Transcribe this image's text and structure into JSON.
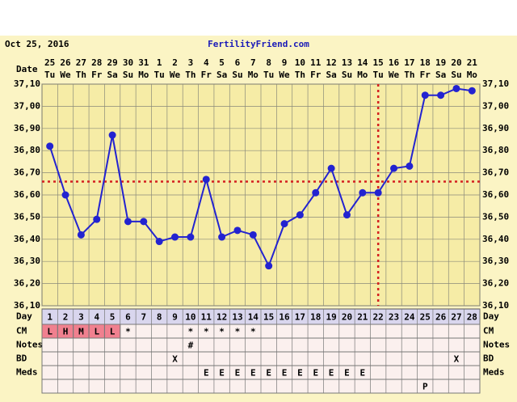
{
  "chart_data": {
    "type": "line",
    "date": "Oct 25, 2016",
    "site": "FertilityFriend.com",
    "date_label": "Date",
    "day_label": "Day",
    "dates": [
      "25",
      "26",
      "27",
      "28",
      "29",
      "30",
      "31",
      "1",
      "2",
      "3",
      "4",
      "5",
      "6",
      "7",
      "8",
      "9",
      "10",
      "11",
      "12",
      "13",
      "14",
      "15",
      "16",
      "17",
      "18",
      "19",
      "20",
      "21"
    ],
    "weekdays": [
      "Tu",
      "We",
      "Th",
      "Fr",
      "Sa",
      "Su",
      "Mo",
      "Tu",
      "We",
      "Th",
      "Fr",
      "Sa",
      "Su",
      "Mo",
      "Tu",
      "We",
      "Th",
      "Fr",
      "Sa",
      "Su",
      "Mo",
      "Tu",
      "We",
      "Th",
      "Fr",
      "Sa",
      "Su",
      "Mo"
    ],
    "x": [
      1,
      2,
      3,
      4,
      5,
      6,
      7,
      8,
      9,
      10,
      11,
      12,
      13,
      14,
      15,
      16,
      17,
      18,
      19,
      20,
      21,
      22,
      23,
      24,
      25,
      26,
      27,
      28
    ],
    "xlim": [
      0.5,
      28.5
    ],
    "series": [
      {
        "color": "#2323d0",
        "values": [
          36.82,
          36.6,
          36.42,
          36.49,
          36.87,
          36.48,
          36.48,
          36.39,
          36.41,
          36.41,
          36.67,
          36.41,
          36.44,
          36.42,
          36.28,
          36.47,
          36.51,
          36.61,
          36.72,
          36.51,
          36.61,
          36.61,
          36.72,
          36.73,
          37.05,
          37.05,
          37.08,
          37.07
        ]
      }
    ],
    "coverline": 36.66,
    "ovulation_day": 22,
    "ylim": [
      36.1,
      37.1
    ],
    "yticks": [
      {
        "value": 36.1,
        "label": "36,10"
      },
      {
        "value": 36.2,
        "label": "36,20"
      },
      {
        "value": 36.3,
        "label": "36,30"
      },
      {
        "value": 36.4,
        "label": "36,40"
      },
      {
        "value": 36.5,
        "label": "36,50"
      },
      {
        "value": 36.6,
        "label": "36,60"
      },
      {
        "value": 36.7,
        "label": "36,70"
      },
      {
        "value": 36.8,
        "label": "36,80"
      },
      {
        "value": 36.9,
        "label": "36,90"
      },
      {
        "value": 37.0,
        "label": "37,00"
      },
      {
        "value": 37.1,
        "label": "37,10"
      }
    ],
    "rows": [
      {
        "label": "CM",
        "cells": [
          "L",
          "H",
          "M",
          "L",
          "L",
          "*",
          null,
          null,
          null,
          "*",
          "*",
          "*",
          "*",
          "*",
          null,
          null,
          null,
          null,
          null,
          null,
          null,
          null,
          null,
          null,
          null,
          null,
          null,
          null
        ]
      },
      {
        "label": "Notes",
        "cells": [
          null,
          null,
          null,
          null,
          null,
          null,
          null,
          null,
          null,
          "#",
          null,
          null,
          null,
          null,
          null,
          null,
          null,
          null,
          null,
          null,
          null,
          null,
          null,
          null,
          null,
          null,
          null,
          null
        ]
      },
      {
        "label": "BD",
        "cells": [
          null,
          null,
          null,
          null,
          null,
          null,
          null,
          null,
          "X",
          null,
          null,
          null,
          null,
          null,
          null,
          null,
          null,
          null,
          null,
          null,
          null,
          null,
          null,
          null,
          null,
          null,
          "X",
          null
        ]
      },
      {
        "label": "Meds",
        "cells": [
          null,
          null,
          null,
          null,
          null,
          null,
          null,
          null,
          null,
          null,
          "E",
          "E",
          "E",
          "E",
          "E",
          "E",
          "E",
          "E",
          "E",
          "E",
          "E",
          null,
          null,
          null,
          null,
          null,
          null,
          null
        ]
      },
      {
        "cells": [
          null,
          null,
          null,
          null,
          null,
          null,
          null,
          null,
          null,
          null,
          null,
          null,
          null,
          null,
          null,
          null,
          null,
          null,
          null,
          null,
          null,
          null,
          null,
          null,
          "P",
          null,
          null,
          null
        ]
      }
    ]
  }
}
